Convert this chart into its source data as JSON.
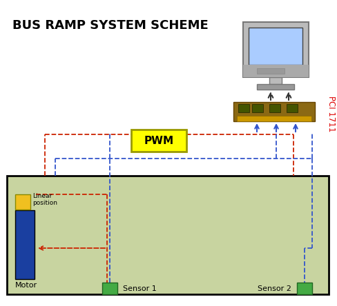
{
  "title": "BUS RAMP SYSTEM SCHEME",
  "bg_color": "#ffffff",
  "ramp_bg": "#c8d4a0",
  "ramp_border": "#000000",
  "motor_color": "#1a3fa0",
  "linear_pos_color": "#f0c020",
  "pwm_color": "#ffff00",
  "pwm_text": "PWM",
  "sensor_color": "#44aa44",
  "pci_label": "PCI 1711",
  "pci_label_color": "#dd0000",
  "red_dashed_color": "#cc2200",
  "blue_dashed_color": "#3355cc",
  "motor_label": "Motor",
  "linear_label": "Linear\nposition",
  "sensor1_label": "Sensor 1",
  "sensor2_label": "Sensor 2"
}
